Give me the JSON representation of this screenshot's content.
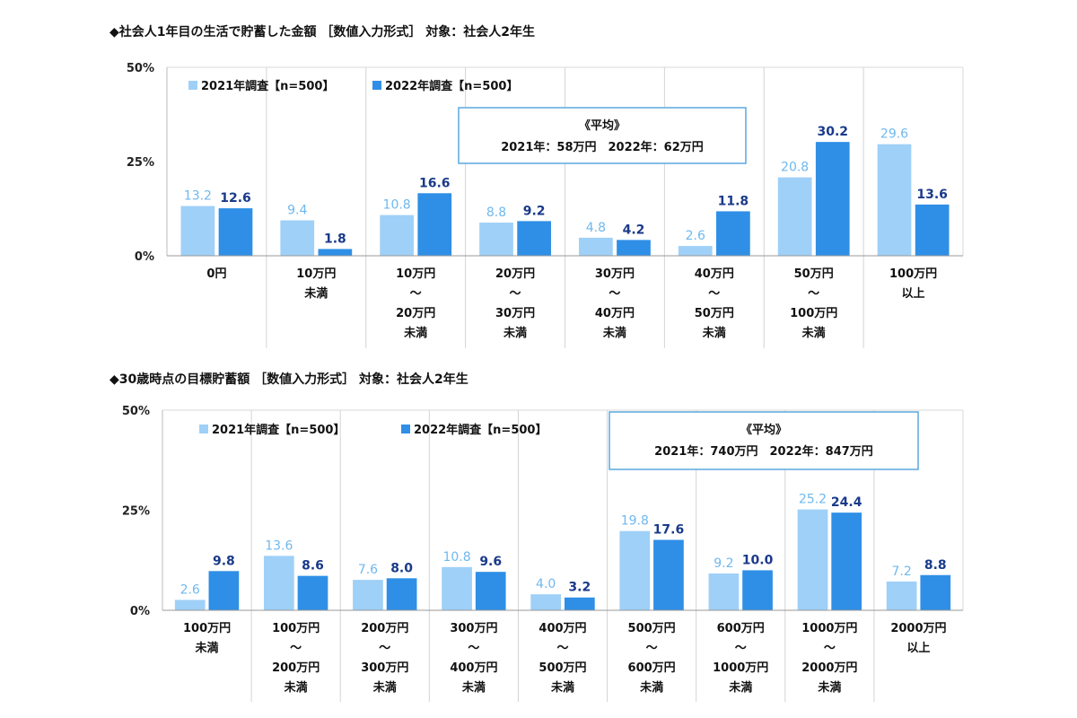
{
  "chart_data": [
    {
      "type": "bar",
      "title": "◆社会人1年目の生活で貯蓄した金額 ［数値入力形式］ 対象：社会人2年生",
      "categories": [
        [
          "0円"
        ],
        [
          "10万円",
          "未満"
        ],
        [
          "10万円",
          "～",
          "20万円",
          "未満"
        ],
        [
          "20万円",
          "～",
          "30万円",
          "未満"
        ],
        [
          "30万円",
          "～",
          "40万円",
          "未満"
        ],
        [
          "40万円",
          "～",
          "50万円",
          "未満"
        ],
        [
          "50万円",
          "～",
          "100万円",
          "未満"
        ],
        [
          "100万円",
          "以上"
        ]
      ],
      "series": [
        {
          "name": "2021年調査【n=500】",
          "values": [
            13.2,
            9.4,
            10.8,
            8.8,
            4.8,
            2.6,
            20.8,
            29.6
          ],
          "color": "#9fd0f7"
        },
        {
          "name": "2022年調査【n=500】",
          "values": [
            12.6,
            1.8,
            16.6,
            9.2,
            4.2,
            11.8,
            30.2,
            13.6
          ],
          "color": "#2f8fe6"
        }
      ],
      "ylim": [
        0,
        50
      ],
      "yticks": [
        "0%",
        "25%",
        "50%"
      ],
      "average_box": {
        "title": "《平均》",
        "text": "2021年：58万円　2022年：62万円"
      },
      "legend_position": "top-left",
      "grid": false
    },
    {
      "type": "bar",
      "title": "◆30歳時点の目標貯蓄額 ［数値入力形式］ 対象：社会人2年生",
      "categories": [
        [
          "100万円",
          "未満"
        ],
        [
          "100万円",
          "～",
          "200万円",
          "未満"
        ],
        [
          "200万円",
          "～",
          "300万円",
          "未満"
        ],
        [
          "300万円",
          "～",
          "400万円",
          "未満"
        ],
        [
          "400万円",
          "～",
          "500万円",
          "未満"
        ],
        [
          "500万円",
          "～",
          "600万円",
          "未満"
        ],
        [
          "600万円",
          "～",
          "1000万円",
          "未満"
        ],
        [
          "1000万円",
          "～",
          "2000万円",
          "未満"
        ],
        [
          "2000万円",
          "以上"
        ]
      ],
      "series": [
        {
          "name": "2021年調査【n=500】",
          "values": [
            2.6,
            13.6,
            7.6,
            10.8,
            4.0,
            19.8,
            9.2,
            25.2,
            7.2
          ],
          "color": "#9fd0f7"
        },
        {
          "name": "2022年調査【n=500】",
          "values": [
            9.8,
            8.6,
            8.0,
            9.6,
            3.2,
            17.6,
            10.0,
            24.4,
            8.8
          ],
          "color": "#2f8fe6"
        }
      ],
      "ylim": [
        0,
        50
      ],
      "yticks": [
        "0%",
        "25%",
        "50%"
      ],
      "average_box": {
        "title": "《平均》",
        "text": "2021年：740万円　2022年：847万円"
      },
      "legend_position": "top-left",
      "grid": false
    }
  ]
}
